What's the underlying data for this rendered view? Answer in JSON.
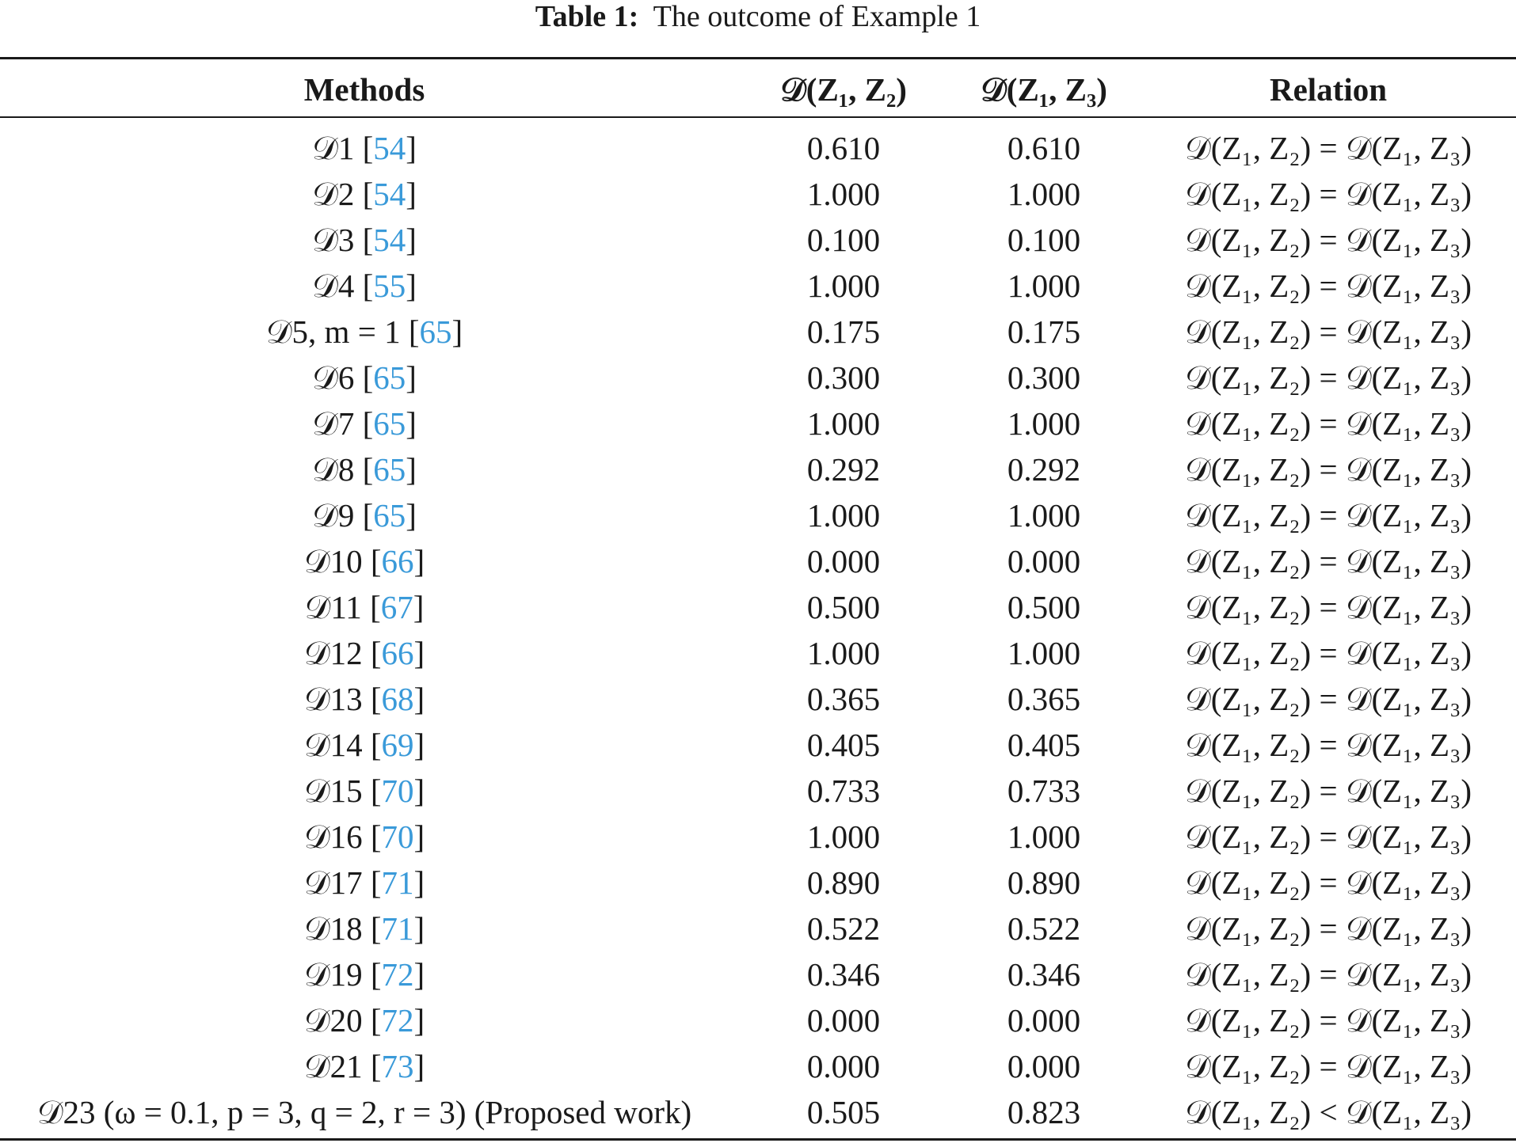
{
  "caption": {
    "label": "Table 1:",
    "text": "The outcome of Example 1"
  },
  "header": {
    "methods": "Methods",
    "col_d12": "𝒟(Z₁, Z₂)",
    "col_d13": "𝒟(Z₁, Z₃)",
    "relation": "Relation"
  },
  "rows": [
    {
      "method": "𝒟1",
      "ref": "54",
      "d12": "0.610",
      "d13": "0.610",
      "relation": "="
    },
    {
      "method": "𝒟2",
      "ref": "54",
      "d12": "1.000",
      "d13": "1.000",
      "relation": "="
    },
    {
      "method": "𝒟3",
      "ref": "54",
      "d12": "0.100",
      "d13": "0.100",
      "relation": "="
    },
    {
      "method": "𝒟4",
      "ref": "55",
      "d12": "1.000",
      "d13": "1.000",
      "relation": "="
    },
    {
      "method": "𝒟5, m = 1",
      "ref": "65",
      "d12": "0.175",
      "d13": "0.175",
      "relation": "="
    },
    {
      "method": "𝒟6",
      "ref": "65",
      "d12": "0.300",
      "d13": "0.300",
      "relation": "="
    },
    {
      "method": "𝒟7",
      "ref": "65",
      "d12": "1.000",
      "d13": "1.000",
      "relation": "="
    },
    {
      "method": "𝒟8",
      "ref": "65",
      "d12": "0.292",
      "d13": "0.292",
      "relation": "="
    },
    {
      "method": "𝒟9",
      "ref": "65",
      "d12": "1.000",
      "d13": "1.000",
      "relation": "="
    },
    {
      "method": "𝒟10",
      "ref": "66",
      "d12": "0.000",
      "d13": "0.000",
      "relation": "="
    },
    {
      "method": "𝒟11",
      "ref": "67",
      "d12": "0.500",
      "d13": "0.500",
      "relation": "="
    },
    {
      "method": "𝒟12",
      "ref": "66",
      "d12": "1.000",
      "d13": "1.000",
      "relation": "="
    },
    {
      "method": "𝒟13",
      "ref": "68",
      "d12": "0.365",
      "d13": "0.365",
      "relation": "="
    },
    {
      "method": "𝒟14",
      "ref": "69",
      "d12": "0.405",
      "d13": "0.405",
      "relation": "="
    },
    {
      "method": "𝒟15",
      "ref": "70",
      "d12": "0.733",
      "d13": "0.733",
      "relation": "="
    },
    {
      "method": "𝒟16",
      "ref": "70",
      "d12": "1.000",
      "d13": "1.000",
      "relation": "="
    },
    {
      "method": "𝒟17",
      "ref": "71",
      "d12": "0.890",
      "d13": "0.890",
      "relation": "="
    },
    {
      "method": "𝒟18",
      "ref": "71",
      "d12": "0.522",
      "d13": "0.522",
      "relation": "="
    },
    {
      "method": "𝒟19",
      "ref": "72",
      "d12": "0.346",
      "d13": "0.346",
      "relation": "="
    },
    {
      "method": "𝒟20",
      "ref": "72",
      "d12": "0.000",
      "d13": "0.000",
      "relation": "="
    },
    {
      "method": "𝒟21",
      "ref": "73",
      "d12": "0.000",
      "d13": "0.000",
      "relation": "="
    },
    {
      "method": "𝒟23 (ω = 0.1, p = 3, q = 2, r = 3) (Proposed work)",
      "ref": "",
      "d12": "0.505",
      "d13": "0.823",
      "relation": "<"
    }
  ]
}
